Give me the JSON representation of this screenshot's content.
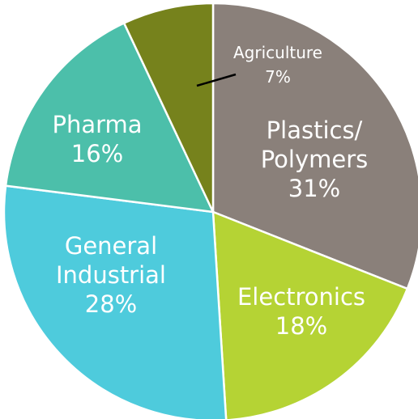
{
  "chart_data": {
    "type": "pie",
    "categories": [
      "Plastics/ Polymers",
      "Electronics",
      "General Industrial",
      "Pharma",
      "Agriculture"
    ],
    "values": [
      31,
      18,
      28,
      16,
      7
    ],
    "value_labels": [
      "31%",
      "18%",
      "28%",
      "16%",
      "7%"
    ],
    "colors": [
      "#8a807a",
      "#b5d334",
      "#4ecbdc",
      "#4cbfaa",
      "#76821c"
    ]
  }
}
